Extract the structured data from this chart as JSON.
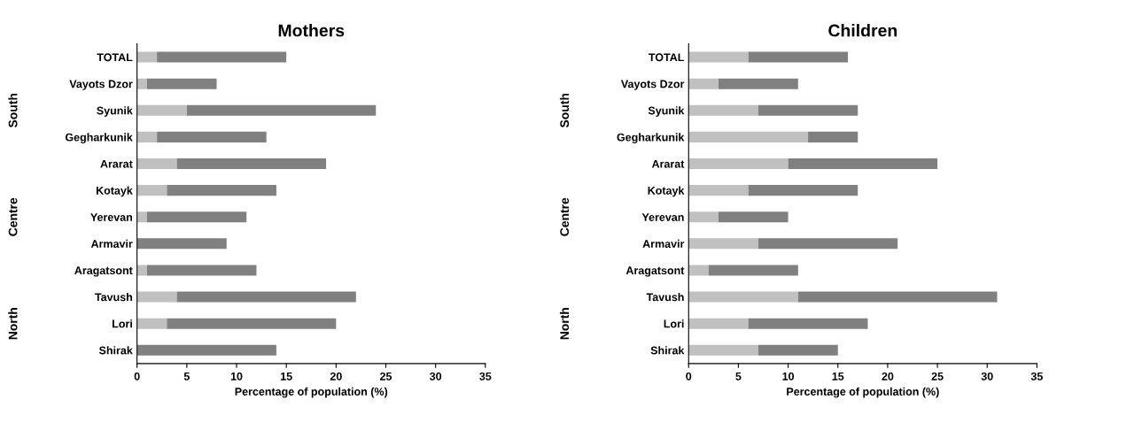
{
  "chart_data": [
    {
      "type": "bar",
      "orientation": "horizontal",
      "stacked": true,
      "title": "Mothers",
      "xlabel": "Percentage of population (%)",
      "categories": [
        "TOTAL",
        "Vayots Dzor",
        "Syunik",
        "Gegharkunik",
        "Ararat",
        "Kotayk",
        "Yerevan",
        "Armavir",
        "Aragatsont",
        "Tavush",
        "Lori",
        "Shirak"
      ],
      "series": [
        {
          "color": "#c0c0c0",
          "values": [
            2,
            1,
            5,
            2,
            4,
            3,
            1,
            0,
            1,
            4,
            3,
            0
          ]
        },
        {
          "color": "#808080",
          "values": [
            13,
            7,
            19,
            11,
            15,
            11,
            10,
            9,
            11,
            18,
            17,
            14
          ]
        }
      ],
      "xlim": [
        0,
        35
      ],
      "xticks": [
        0,
        5,
        10,
        15,
        20,
        25,
        30,
        35
      ],
      "annotations": [
        "South",
        "Centre",
        "North"
      ]
    },
    {
      "type": "bar",
      "orientation": "horizontal",
      "stacked": true,
      "title": "Children",
      "xlabel": "Percentage of population (%)",
      "categories": [
        "TOTAL",
        "Vayots Dzor",
        "Syunik",
        "Gegharkunik",
        "Ararat",
        "Kotayk",
        "Yerevan",
        "Armavir",
        "Aragatsont",
        "Tavush",
        "Lori",
        "Shirak"
      ],
      "series": [
        {
          "color": "#c0c0c0",
          "values": [
            6,
            3,
            7,
            12,
            10,
            6,
            3,
            7,
            2,
            11,
            6,
            7
          ]
        },
        {
          "color": "#808080",
          "values": [
            10,
            8,
            10,
            5,
            15,
            11,
            7,
            14,
            9,
            20,
            12,
            8
          ]
        }
      ],
      "xlim": [
        0,
        35
      ],
      "xticks": [
        0,
        5,
        10,
        15,
        20,
        25,
        30,
        35
      ],
      "annotations": [
        "South",
        "Centre",
        "North"
      ]
    }
  ]
}
